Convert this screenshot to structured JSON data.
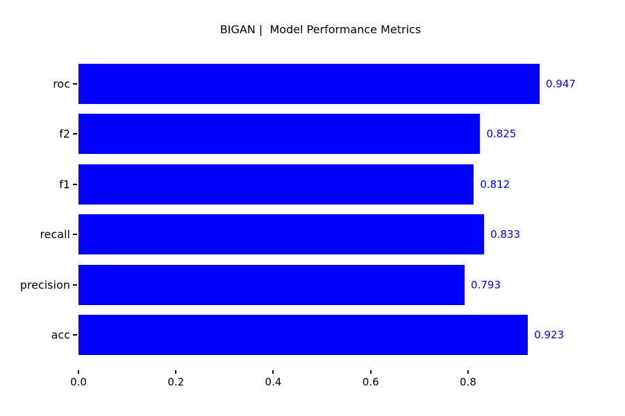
{
  "chart_data": {
    "type": "bar",
    "orientation": "horizontal",
    "title": "BIGAN |  Model Performance Metrics",
    "categories": [
      "roc",
      "f2",
      "f1",
      "recall",
      "precision",
      "acc"
    ],
    "values": [
      0.947,
      0.825,
      0.812,
      0.833,
      0.793,
      0.923
    ],
    "value_labels": [
      "0.947",
      "0.825",
      "0.812",
      "0.833",
      "0.793",
      "0.923"
    ],
    "xticks": [
      0.0,
      0.2,
      0.4,
      0.6,
      0.8
    ],
    "xtick_labels": [
      "0.0",
      "0.2",
      "0.4",
      "0.6",
      "0.8"
    ],
    "xlim": [
      0,
      0.994
    ],
    "bar_color": "#0000ff",
    "value_label_color": "#0000ff",
    "text_color": "#000000",
    "background_color": "#ffffff",
    "grid": false,
    "legend": false,
    "xlabel": "",
    "ylabel": ""
  }
}
